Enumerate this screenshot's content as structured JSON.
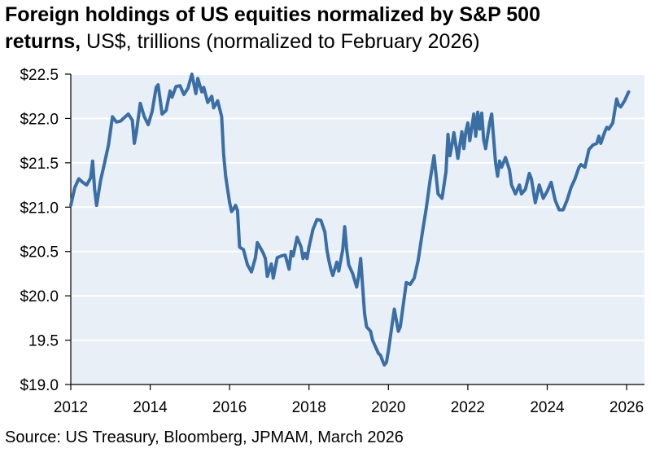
{
  "title": {
    "line1": "Foreign holdings of US equities normalized by S&P 500",
    "line2_bold": "returns,",
    "line2_rest": " US$, trillions (normalized to February 2026)"
  },
  "source": "Source: US Treasury, Bloomberg, JPMAM, March 2026",
  "colors": {
    "line": "#3a6ea5",
    "plot_bg": "#e8eff6",
    "grid": "#ffffff"
  },
  "chart_data": {
    "type": "line",
    "title": "Foreign holdings of US equities normalized by S&P 500 returns",
    "subtitle": "US$, trillions (normalized to February 2026)",
    "xlabel": "",
    "ylabel": "",
    "xlim": [
      2012,
      2026.45
    ],
    "ylim": [
      19.0,
      22.5
    ],
    "grid": true,
    "legend": "none",
    "x_ticks": [
      2012,
      2014,
      2016,
      2018,
      2020,
      2022,
      2024,
      2026
    ],
    "x_tick_labels": [
      "2012",
      "2014",
      "2016",
      "2018",
      "2020",
      "2022",
      "2024",
      "2026"
    ],
    "y_ticks": [
      19.0,
      19.5,
      20.0,
      20.5,
      21.0,
      21.5,
      22.0,
      22.5
    ],
    "y_tick_labels": [
      "$19.0",
      "19.5",
      "$20.0",
      "$20.5",
      "$21.0",
      "$21.5",
      "$22.0",
      "$22.5"
    ],
    "series": [
      {
        "values": [
          [
            2012.0,
            21.02
          ],
          [
            2012.1,
            21.22
          ],
          [
            2012.2,
            21.32
          ],
          [
            2012.3,
            21.28
          ],
          [
            2012.4,
            21.25
          ],
          [
            2012.5,
            21.33
          ],
          [
            2012.55,
            21.52
          ],
          [
            2012.6,
            21.2
          ],
          [
            2012.65,
            21.02
          ],
          [
            2012.75,
            21.3
          ],
          [
            2012.85,
            21.5
          ],
          [
            2012.95,
            21.7
          ],
          [
            2013.05,
            22.02
          ],
          [
            2013.15,
            21.96
          ],
          [
            2013.25,
            21.97
          ],
          [
            2013.35,
            22.01
          ],
          [
            2013.45,
            22.05
          ],
          [
            2013.55,
            21.98
          ],
          [
            2013.6,
            21.72
          ],
          [
            2013.65,
            21.84
          ],
          [
            2013.75,
            22.17
          ],
          [
            2013.85,
            22.02
          ],
          [
            2013.95,
            21.93
          ],
          [
            2014.05,
            22.08
          ],
          [
            2014.15,
            22.35
          ],
          [
            2014.2,
            22.38
          ],
          [
            2014.3,
            22.05
          ],
          [
            2014.4,
            22.09
          ],
          [
            2014.5,
            22.31
          ],
          [
            2014.55,
            22.24
          ],
          [
            2014.65,
            22.36
          ],
          [
            2014.75,
            22.37
          ],
          [
            2014.85,
            22.27
          ],
          [
            2014.95,
            22.34
          ],
          [
            2015.05,
            22.5
          ],
          [
            2015.15,
            22.28
          ],
          [
            2015.2,
            22.45
          ],
          [
            2015.3,
            22.3
          ],
          [
            2015.35,
            22.35
          ],
          [
            2015.45,
            22.18
          ],
          [
            2015.55,
            22.25
          ],
          [
            2015.6,
            22.12
          ],
          [
            2015.7,
            22.2
          ],
          [
            2015.8,
            22.02
          ],
          [
            2015.85,
            21.6
          ],
          [
            2015.9,
            21.35
          ],
          [
            2015.95,
            21.2
          ],
          [
            2016.0,
            21.05
          ],
          [
            2016.05,
            20.95
          ],
          [
            2016.1,
            20.98
          ],
          [
            2016.15,
            21.02
          ],
          [
            2016.2,
            20.96
          ],
          [
            2016.25,
            20.55
          ],
          [
            2016.35,
            20.52
          ],
          [
            2016.45,
            20.35
          ],
          [
            2016.55,
            20.27
          ],
          [
            2016.65,
            20.43
          ],
          [
            2016.7,
            20.6
          ],
          [
            2016.8,
            20.52
          ],
          [
            2016.85,
            20.48
          ],
          [
            2016.9,
            20.42
          ],
          [
            2016.95,
            20.22
          ],
          [
            2017.05,
            20.36
          ],
          [
            2017.1,
            20.2
          ],
          [
            2017.2,
            20.43
          ],
          [
            2017.3,
            20.45
          ],
          [
            2017.4,
            20.46
          ],
          [
            2017.5,
            20.3
          ],
          [
            2017.55,
            20.5
          ],
          [
            2017.6,
            20.45
          ],
          [
            2017.7,
            20.66
          ],
          [
            2017.8,
            20.55
          ],
          [
            2017.85,
            20.42
          ],
          [
            2017.9,
            20.48
          ],
          [
            2017.95,
            20.42
          ],
          [
            2018.0,
            20.55
          ],
          [
            2018.1,
            20.75
          ],
          [
            2018.2,
            20.86
          ],
          [
            2018.3,
            20.85
          ],
          [
            2018.4,
            20.72
          ],
          [
            2018.45,
            20.52
          ],
          [
            2018.5,
            20.4
          ],
          [
            2018.55,
            20.3
          ],
          [
            2018.6,
            20.23
          ],
          [
            2018.7,
            20.38
          ],
          [
            2018.75,
            20.28
          ],
          [
            2018.85,
            20.52
          ],
          [
            2018.9,
            20.78
          ],
          [
            2018.95,
            20.52
          ],
          [
            2019.0,
            20.35
          ],
          [
            2019.1,
            20.25
          ],
          [
            2019.2,
            20.1
          ],
          [
            2019.25,
            20.22
          ],
          [
            2019.3,
            20.42
          ],
          [
            2019.4,
            19.8
          ],
          [
            2019.45,
            19.65
          ],
          [
            2019.55,
            19.6
          ],
          [
            2019.6,
            19.5
          ],
          [
            2019.65,
            19.45
          ],
          [
            2019.7,
            19.4
          ],
          [
            2019.75,
            19.35
          ],
          [
            2019.8,
            19.33
          ],
          [
            2019.85,
            19.27
          ],
          [
            2019.9,
            19.22
          ],
          [
            2019.95,
            19.25
          ],
          [
            2020.0,
            19.38
          ],
          [
            2020.1,
            19.7
          ],
          [
            2020.15,
            19.85
          ],
          [
            2020.25,
            19.6
          ],
          [
            2020.3,
            19.65
          ],
          [
            2020.45,
            20.15
          ],
          [
            2020.55,
            20.13
          ],
          [
            2020.65,
            20.2
          ],
          [
            2020.75,
            20.4
          ],
          [
            2020.85,
            20.7
          ],
          [
            2020.95,
            20.98
          ],
          [
            2021.05,
            21.3
          ],
          [
            2021.15,
            21.58
          ],
          [
            2021.25,
            21.15
          ],
          [
            2021.35,
            21.1
          ],
          [
            2021.45,
            21.4
          ],
          [
            2021.5,
            21.82
          ],
          [
            2021.55,
            21.58
          ],
          [
            2021.6,
            21.7
          ],
          [
            2021.65,
            21.84
          ],
          [
            2021.75,
            21.55
          ],
          [
            2021.8,
            21.7
          ],
          [
            2021.85,
            21.85
          ],
          [
            2021.9,
            21.66
          ],
          [
            2021.95,
            21.85
          ],
          [
            2022.0,
            21.95
          ],
          [
            2022.05,
            21.75
          ],
          [
            2022.1,
            21.9
          ],
          [
            2022.15,
            22.05
          ],
          [
            2022.2,
            21.8
          ],
          [
            2022.25,
            22.07
          ],
          [
            2022.3,
            21.88
          ],
          [
            2022.35,
            22.06
          ],
          [
            2022.4,
            21.76
          ],
          [
            2022.45,
            21.66
          ],
          [
            2022.55,
            21.95
          ],
          [
            2022.6,
            22.05
          ],
          [
            2022.7,
            21.5
          ],
          [
            2022.75,
            21.35
          ],
          [
            2022.8,
            21.52
          ],
          [
            2022.85,
            21.45
          ],
          [
            2022.95,
            21.56
          ],
          [
            2023.05,
            21.42
          ],
          [
            2023.1,
            21.25
          ],
          [
            2023.2,
            21.15
          ],
          [
            2023.3,
            21.25
          ],
          [
            2023.35,
            21.15
          ],
          [
            2023.45,
            21.2
          ],
          [
            2023.55,
            21.38
          ],
          [
            2023.6,
            21.32
          ],
          [
            2023.7,
            21.05
          ],
          [
            2023.8,
            21.25
          ],
          [
            2023.9,
            21.1
          ],
          [
            2024.0,
            21.18
          ],
          [
            2024.1,
            21.28
          ],
          [
            2024.2,
            21.08
          ],
          [
            2024.3,
            20.97
          ],
          [
            2024.4,
            20.97
          ],
          [
            2024.5,
            21.08
          ],
          [
            2024.6,
            21.22
          ],
          [
            2024.7,
            21.32
          ],
          [
            2024.8,
            21.45
          ],
          [
            2024.85,
            21.48
          ],
          [
            2024.95,
            21.45
          ],
          [
            2025.05,
            21.65
          ],
          [
            2025.15,
            21.7
          ],
          [
            2025.25,
            21.72
          ],
          [
            2025.3,
            21.8
          ],
          [
            2025.35,
            21.72
          ],
          [
            2025.45,
            21.85
          ],
          [
            2025.5,
            21.9
          ],
          [
            2025.55,
            21.88
          ],
          [
            2025.65,
            21.95
          ],
          [
            2025.75,
            22.22
          ],
          [
            2025.8,
            22.15
          ],
          [
            2025.85,
            22.13
          ],
          [
            2025.95,
            22.2
          ],
          [
            2026.05,
            22.3
          ]
        ]
      }
    ]
  }
}
